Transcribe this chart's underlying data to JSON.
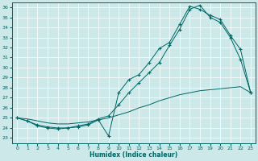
{
  "xlabel": "Humidex (Indice chaleur)",
  "bg_color": "#cce8e8",
  "line_color": "#006666",
  "xlim": [
    -0.5,
    23.5
  ],
  "ylim": [
    22.5,
    36.5
  ],
  "xticks": [
    0,
    1,
    2,
    3,
    4,
    5,
    6,
    7,
    8,
    9,
    10,
    11,
    12,
    13,
    14,
    15,
    16,
    17,
    18,
    19,
    20,
    21,
    22,
    23
  ],
  "yticks": [
    23,
    24,
    25,
    26,
    27,
    28,
    29,
    30,
    31,
    32,
    33,
    34,
    35,
    36
  ],
  "grid_color": "#b0d0d0",
  "series": [
    {
      "x": [
        0,
        1,
        2,
        3,
        4,
        5,
        6,
        7,
        8,
        9,
        10,
        11,
        12,
        13,
        14,
        15,
        16,
        17,
        18,
        19,
        20,
        21,
        22,
        23
      ],
      "y": [
        25.0,
        24.7,
        24.2,
        24.0,
        23.9,
        24.0,
        24.1,
        24.3,
        24.8,
        23.2,
        27.5,
        28.8,
        29.3,
        30.5,
        31.9,
        32.5,
        34.3,
        36.1,
        35.8,
        35.2,
        34.8,
        33.2,
        31.8,
        27.5
      ],
      "marker": "+"
    },
    {
      "x": [
        0,
        1,
        2,
        3,
        4,
        5,
        6,
        7,
        8,
        9,
        10,
        11,
        12,
        13,
        14,
        15,
        16,
        17,
        18,
        19,
        20,
        21,
        22,
        23
      ],
      "y": [
        25.0,
        24.9,
        24.7,
        24.5,
        24.4,
        24.4,
        24.5,
        24.6,
        24.8,
        25.0,
        25.3,
        25.6,
        26.0,
        26.3,
        26.7,
        27.0,
        27.3,
        27.5,
        27.7,
        27.8,
        27.9,
        28.0,
        28.1,
        27.5
      ],
      "marker": null
    },
    {
      "x": [
        0,
        1,
        2,
        3,
        4,
        5,
        6,
        7,
        8,
        9,
        10,
        11,
        12,
        13,
        14,
        15,
        16,
        17,
        18,
        19,
        20,
        21,
        22,
        23
      ],
      "y": [
        25.0,
        24.7,
        24.3,
        24.1,
        24.0,
        24.0,
        24.2,
        24.4,
        24.9,
        25.2,
        26.3,
        27.5,
        28.5,
        29.5,
        30.5,
        32.2,
        33.8,
        35.8,
        36.2,
        35.0,
        34.5,
        33.0,
        30.8,
        27.5
      ],
      "marker": "+"
    }
  ]
}
